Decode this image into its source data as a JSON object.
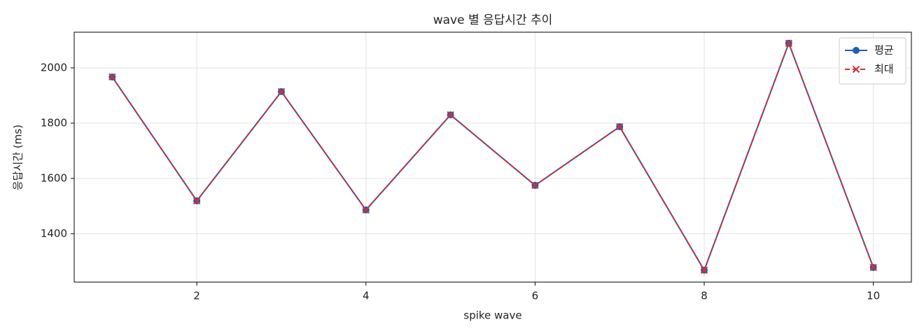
{
  "chart_data": {
    "type": "line",
    "title": "wave 별 응답시간 추이",
    "xlabel": "spike wave",
    "ylabel": "응답시간 (ms)",
    "x": [
      1,
      2,
      3,
      4,
      5,
      6,
      7,
      8,
      9,
      10
    ],
    "series": [
      {
        "name": "평균",
        "color": "#1f5fb4",
        "marker": "o",
        "linestyle": "solid",
        "values": [
          1967,
          1519,
          1914,
          1486,
          1830,
          1575,
          1787,
          1268,
          2089,
          1278
        ]
      },
      {
        "name": "최대",
        "color": "#d62f2f",
        "marker": "x",
        "linestyle": "dashed",
        "values": [
          1967,
          1519,
          1914,
          1486,
          1830,
          1575,
          1787,
          1268,
          2089,
          1278
        ]
      }
    ],
    "xlim": [
      0.55,
      10.45
    ],
    "ylim": [
      1225,
      2129
    ],
    "xticks": [
      2,
      4,
      6,
      8,
      10
    ],
    "yticks": [
      1400,
      1600,
      1800,
      2000
    ],
    "grid": true,
    "legend": "upper right"
  }
}
